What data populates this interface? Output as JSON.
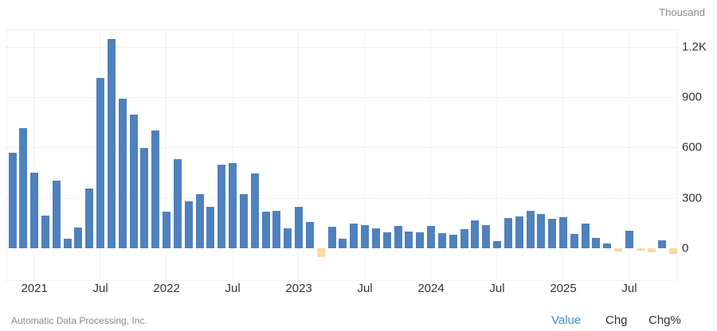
{
  "unit_label": "Thousand",
  "source": "Automatic Data Processing, Inc.",
  "tabs": [
    {
      "label": "Value",
      "active": true
    },
    {
      "label": "Chg",
      "active": false
    },
    {
      "label": "Chg%",
      "active": false
    }
  ],
  "colors": {
    "positive": "#4f81bd",
    "negative": "#f8d9a8",
    "active_tab": "#3c8fd6"
  },
  "chart_data": {
    "type": "bar",
    "title": "",
    "xlabel": "",
    "ylabel": "Thousand",
    "ylim": [
      -130,
      1300
    ],
    "yticks": [
      {
        "value": 0,
        "label": "0"
      },
      {
        "value": 300,
        "label": "300"
      },
      {
        "value": 600,
        "label": "600"
      },
      {
        "value": 900,
        "label": "900"
      },
      {
        "value": 1200,
        "label": "1.2K"
      }
    ],
    "xticks": [
      {
        "index": 2,
        "label": "2021"
      },
      {
        "index": 8,
        "label": "Jul"
      },
      {
        "index": 14,
        "label": "2022"
      },
      {
        "index": 20,
        "label": "Jul"
      },
      {
        "index": 26,
        "label": "2023"
      },
      {
        "index": 32,
        "label": "Jul"
      },
      {
        "index": 38,
        "label": "2024"
      },
      {
        "index": 44,
        "label": "Jul"
      },
      {
        "index": 50,
        "label": "2025"
      },
      {
        "index": 56,
        "label": "Jul"
      }
    ],
    "grid": true,
    "legend": null,
    "categories": [
      "Nov 2020",
      "Dec 2020",
      "Jan 2021",
      "Feb 2021",
      "Mar 2021",
      "Apr 2021",
      "May 2021",
      "Jun 2021",
      "Jul 2021",
      "Aug 2021",
      "Sep 2021",
      "Oct 2021",
      "Nov 2021",
      "Dec 2021",
      "Jan 2022",
      "Feb 2022",
      "Mar 2022",
      "Apr 2022",
      "May 2022",
      "Jun 2022",
      "Jul 2022",
      "Aug 2022",
      "Sep 2022",
      "Oct 2022",
      "Nov 2022",
      "Dec 2022",
      "Jan 2023",
      "Feb 2023",
      "Mar 2023",
      "Apr 2023",
      "May 2023",
      "Jun 2023",
      "Jul 2023",
      "Aug 2023",
      "Sep 2023",
      "Oct 2023",
      "Nov 2023",
      "Dec 2023",
      "Jan 2024",
      "Feb 2024",
      "Mar 2024",
      "Apr 2024",
      "May 2024",
      "Jun 2024",
      "Jul 2024",
      "Aug 2024",
      "Sep 2024",
      "Oct 2024",
      "Nov 2024",
      "Dec 2024",
      "Jan 2025",
      "Feb 2025",
      "Mar 2025",
      "Apr 2025",
      "May 2025",
      "Jun 2025",
      "Jul 2025",
      "Aug 2025",
      "Sep 2025",
      "Oct 2025",
      "Nov 2025"
    ],
    "values": [
      567,
      714,
      450,
      193,
      404,
      55,
      125,
      354,
      1014,
      1248,
      892,
      796,
      599,
      700,
      217,
      531,
      278,
      324,
      246,
      496,
      507,
      324,
      445,
      217,
      221,
      120,
      246,
      155,
      -51,
      130,
      55,
      145,
      136,
      120,
      95,
      131,
      101,
      95,
      131,
      90,
      79,
      115,
      166,
      136,
      44,
      182,
      191,
      221,
      202,
      177,
      186,
      87,
      145,
      60,
      30,
      -20,
      104,
      -14,
      -25,
      49,
      -32
    ]
  }
}
